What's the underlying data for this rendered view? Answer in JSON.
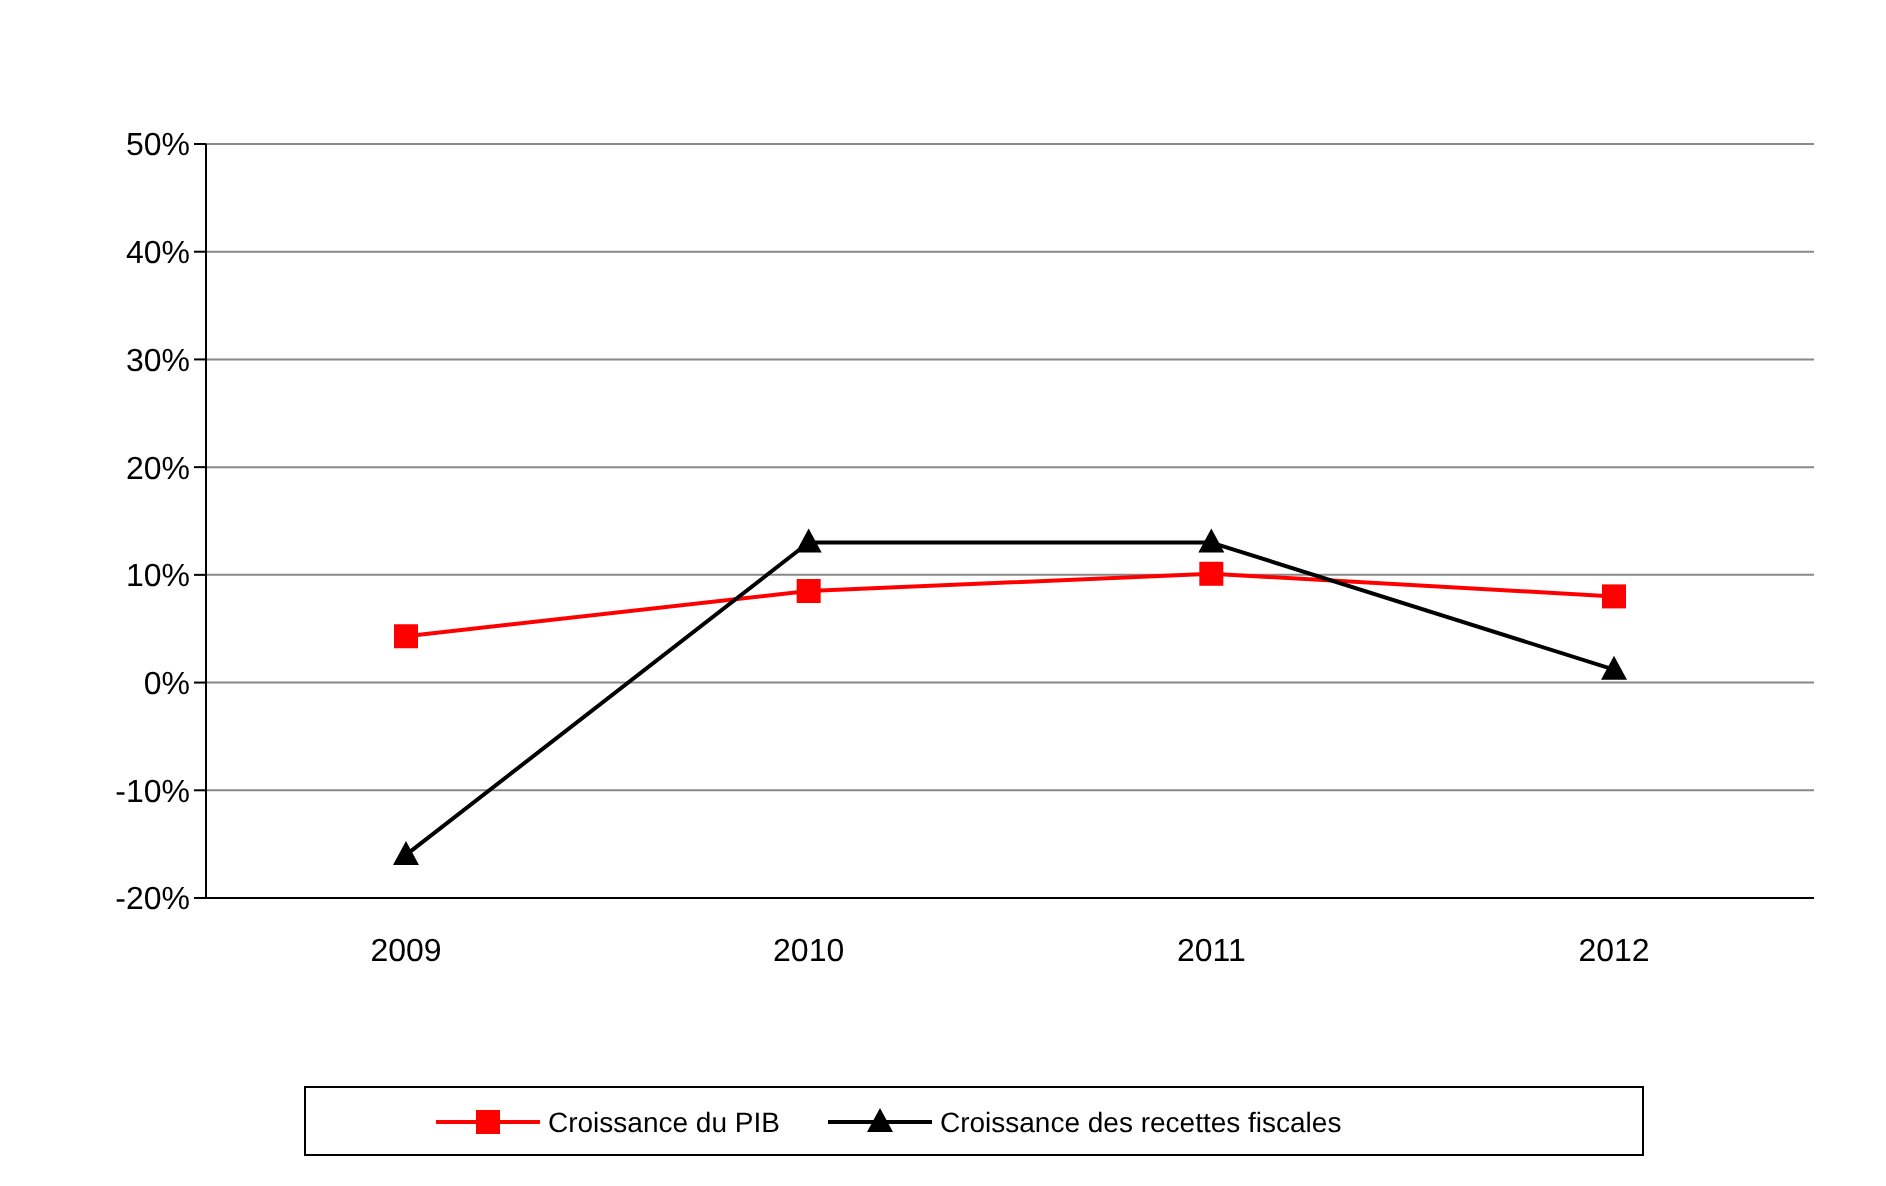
{
  "chart_data": {
    "type": "line",
    "categories": [
      "2009",
      "2010",
      "2011",
      "2012"
    ],
    "series": [
      {
        "name": "Croissance du PIB",
        "color": "#ff0000",
        "marker": "square",
        "values": [
          4.3,
          8.5,
          10.1,
          8
        ]
      },
      {
        "name": "Croissance des recettes fiscales",
        "color": "#000000",
        "marker": "triangle",
        "values": [
          -16,
          13,
          13,
          1.2
        ]
      }
    ],
    "ylim": [
      -20,
      50
    ],
    "yticks": [
      {
        "value": -20,
        "label": "-20%"
      },
      {
        "value": -10,
        "label": "-10%"
      },
      {
        "value": 0,
        "label": "0%"
      },
      {
        "value": 10,
        "label": "10%"
      },
      {
        "value": 20,
        "label": "20%"
      },
      {
        "value": 30,
        "label": "30%"
      },
      {
        "value": 40,
        "label": "40%"
      },
      {
        "value": 50,
        "label": "50%"
      }
    ],
    "grid": "y",
    "legend": "bottom",
    "line_style": "solid"
  }
}
